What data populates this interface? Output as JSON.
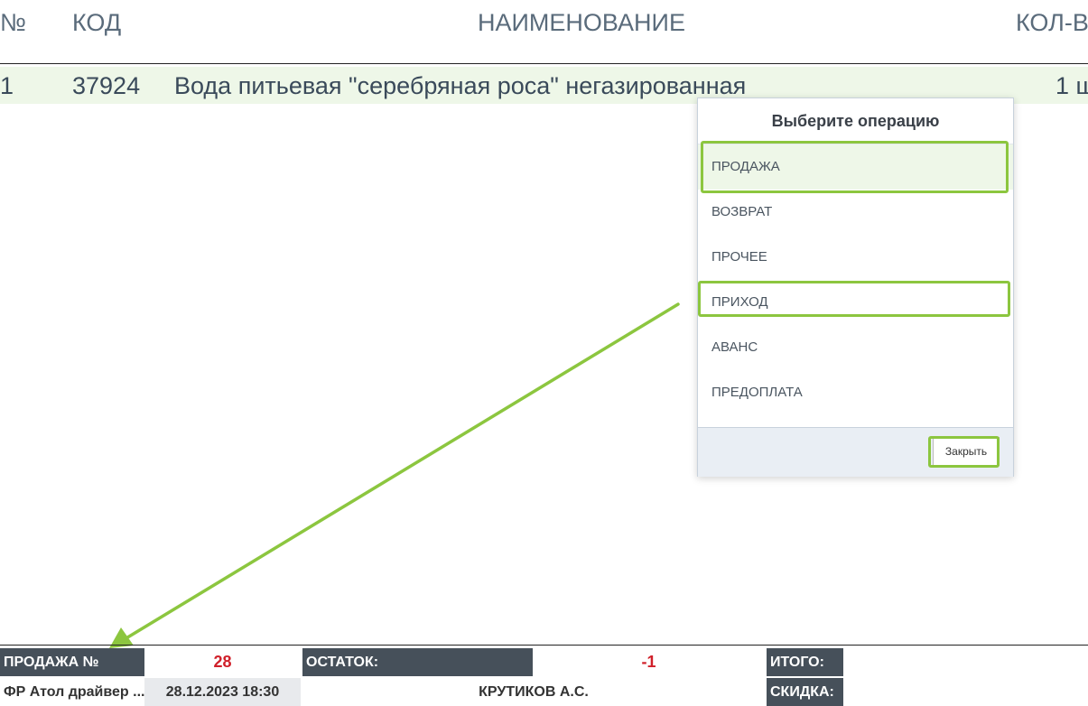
{
  "table": {
    "headers": {
      "num": "№",
      "code": "КОД",
      "name": "НАИМЕНОВАНИЕ",
      "qty": "КОЛ-В"
    },
    "rows": [
      {
        "num": "1",
        "code": "37924",
        "name": "Вода питьевая \"серебряная роса\" негазированная",
        "qty": "1 ш"
      }
    ]
  },
  "modal": {
    "title": "Выберите операцию",
    "operations": [
      "ПРОДАЖА",
      "ВОЗВРАТ",
      "ПРОЧЕЕ",
      "ПРИХОД",
      "АВАНС",
      "ПРЕДОПЛАТА"
    ],
    "close_label": "Закрыть"
  },
  "status": {
    "sale_label": "ПРОДАЖА №",
    "sale_number": "28",
    "balance_label": "ОСТАТОК:",
    "balance_value": "-1",
    "total_label": "ИТОГО:",
    "driver": "ФР Атол драйвер ...",
    "datetime": "28.12.2023 18:30",
    "cashier": "КРУТИКОВ А.С.",
    "discount_label": "СКИДКА:"
  },
  "colors": {
    "annotation": "#8cc63f",
    "accent_red": "#d0202a",
    "dark_cell": "#46505a"
  }
}
